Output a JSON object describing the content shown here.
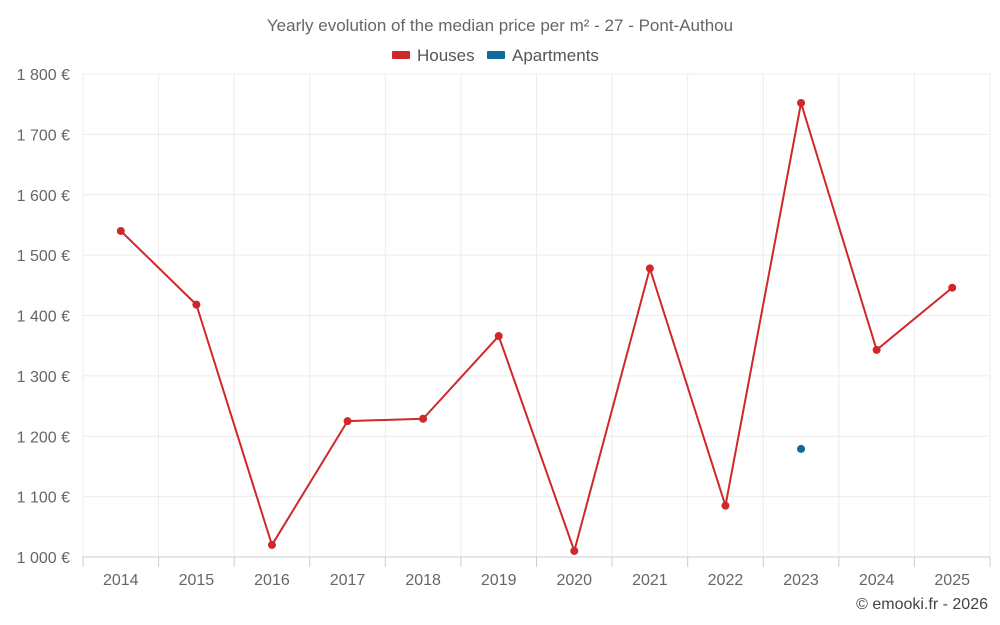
{
  "chart_data": {
    "type": "line",
    "title": "Yearly evolution of the median price per m² - 27 - Pont-Authou",
    "categories": [
      "2014",
      "2015",
      "2016",
      "2017",
      "2018",
      "2019",
      "2020",
      "2021",
      "2022",
      "2023",
      "2024",
      "2025"
    ],
    "series": [
      {
        "name": "Houses",
        "color": "#d0282a",
        "values": [
          1540,
          1418,
          1020,
          1225,
          1229,
          1366,
          1010,
          1478,
          1085,
          1752,
          1343,
          1446
        ]
      },
      {
        "name": "Apartments",
        "color": "#0e6a9a",
        "values": [
          null,
          null,
          null,
          null,
          null,
          null,
          null,
          null,
          null,
          1179,
          null,
          null
        ]
      }
    ],
    "ylim": [
      1000,
      1800
    ],
    "yticks": [
      1000,
      1100,
      1200,
      1300,
      1400,
      1500,
      1600,
      1700,
      1800
    ],
    "ytick_labels": [
      "1 000 €",
      "1 100 €",
      "1 200 €",
      "1 300 €",
      "1 400 €",
      "1 500 €",
      "1 600 €",
      "1 700 €",
      "1 800 €"
    ],
    "legend_position": "top-center",
    "grid": true
  },
  "credit": "© emooki.fr - 2026"
}
